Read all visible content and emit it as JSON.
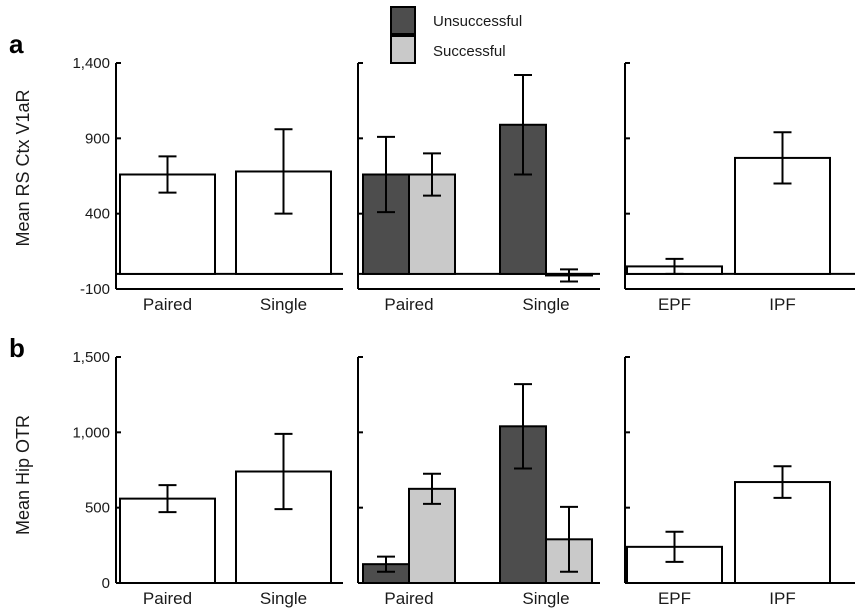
{
  "colors": {
    "white_bar": "#ffffff",
    "unsuccessful": "#4d4d4d",
    "successful": "#c9c9c9",
    "stroke": "#000000"
  },
  "legend": {
    "items": [
      {
        "label": "Unsuccessful",
        "color": "#4d4d4d"
      },
      {
        "label": "Successful",
        "color": "#c9c9c9"
      }
    ]
  },
  "chart_data": [
    {
      "panel": "a",
      "position": "left",
      "type": "bar",
      "ylabel": "Mean RS Ctx V1aR",
      "ylim": [
        -100,
        1400
      ],
      "yticks": [
        -100,
        400,
        900,
        1400
      ],
      "ytick_labels": [
        "-100",
        "400",
        "900",
        "1,400"
      ],
      "categories": [
        "Paired",
        "Single"
      ],
      "series": [
        {
          "color_key": "white_bar",
          "values": [
            660,
            680
          ],
          "errors": [
            120,
            280
          ]
        }
      ]
    },
    {
      "panel": "a",
      "position": "middle",
      "type": "bar",
      "ylim": [
        -100,
        1400
      ],
      "categories": [
        "Paired",
        "Single"
      ],
      "series": [
        {
          "name": "Unsuccessful",
          "color_key": "unsuccessful",
          "values": [
            660,
            990
          ],
          "errors": [
            250,
            330
          ]
        },
        {
          "name": "Successful",
          "color_key": "successful",
          "values": [
            660,
            -10
          ],
          "errors": [
            140,
            40
          ]
        }
      ]
    },
    {
      "panel": "a",
      "position": "right",
      "type": "bar",
      "ylim": [
        -100,
        1400
      ],
      "categories": [
        "EPF",
        "IPF"
      ],
      "series": [
        {
          "color_key": "white_bar",
          "values": [
            50,
            770
          ],
          "errors": [
            50,
            170
          ]
        }
      ]
    },
    {
      "panel": "b",
      "position": "left",
      "type": "bar",
      "ylabel": "Mean Hip OTR",
      "ylim": [
        0,
        1500
      ],
      "yticks": [
        0,
        500,
        1000,
        1500
      ],
      "ytick_labels": [
        "0",
        "500",
        "1,000",
        "1,500"
      ],
      "categories": [
        "Paired",
        "Single"
      ],
      "series": [
        {
          "color_key": "white_bar",
          "values": [
            560,
            740
          ],
          "errors": [
            90,
            250
          ]
        }
      ]
    },
    {
      "panel": "b",
      "position": "middle",
      "type": "bar",
      "ylim": [
        0,
        1500
      ],
      "categories": [
        "Paired",
        "Single"
      ],
      "series": [
        {
          "name": "Unsuccessful",
          "color_key": "unsuccessful",
          "values": [
            125,
            1040
          ],
          "errors": [
            50,
            280
          ]
        },
        {
          "name": "Successful",
          "color_key": "successful",
          "values": [
            625,
            290
          ],
          "errors": [
            100,
            215
          ]
        }
      ]
    },
    {
      "panel": "b",
      "position": "right",
      "type": "bar",
      "ylim": [
        0,
        1500
      ],
      "categories": [
        "EPF",
        "IPF"
      ],
      "series": [
        {
          "color_key": "white_bar",
          "values": [
            240,
            670
          ],
          "errors": [
            100,
            105
          ]
        }
      ]
    }
  ]
}
